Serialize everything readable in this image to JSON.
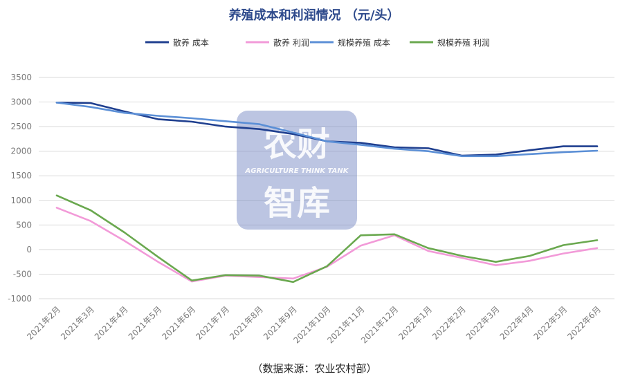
{
  "chart_data": {
    "type": "line",
    "title": "养殖成本和利润情况 （元/头）",
    "xlabel": "",
    "ylabel": "",
    "categories": [
      "2021年2月",
      "2021年3月",
      "2021年4月",
      "2021年5月",
      "2021年6月",
      "2021年7月",
      "2021年8月",
      "2021年9月",
      "2021年10月",
      "2021年11月",
      "2021年12月",
      "2022年1月",
      "2022年2月",
      "2022年3月",
      "2022年4月",
      "2022年5月",
      "2022年6月"
    ],
    "ylim": [
      -1000,
      3500
    ],
    "yticks": [
      -1000,
      -500,
      0,
      500,
      1000,
      1500,
      2000,
      2500,
      3000,
      3500
    ],
    "grid": true,
    "legend_position": "top",
    "series": [
      {
        "name": "散养  成本",
        "color": "#1f3f8f",
        "values": [
          2990,
          2980,
          2810,
          2650,
          2600,
          2500,
          2450,
          2350,
          2200,
          2170,
          2080,
          2060,
          1910,
          1930,
          2020,
          2100,
          2100
        ]
      },
      {
        "name": "散养  利润",
        "color": "#f29ad8",
        "values": [
          850,
          580,
          180,
          -250,
          -650,
          -530,
          -560,
          -590,
          -350,
          80,
          290,
          -30,
          -170,
          -320,
          -230,
          -80,
          30
        ]
      },
      {
        "name": "规模养殖  成本",
        "color": "#5b8fd6",
        "values": [
          2990,
          2900,
          2780,
          2720,
          2670,
          2610,
          2550,
          2380,
          2200,
          2130,
          2050,
          2000,
          1900,
          1900,
          1940,
          1980,
          2010
        ]
      },
      {
        "name": "规模养殖  利润",
        "color": "#6aa84f",
        "values": [
          1100,
          800,
          350,
          -150,
          -630,
          -520,
          -530,
          -660,
          -340,
          290,
          310,
          30,
          -130,
          -250,
          -130,
          90,
          190
        ]
      }
    ]
  },
  "watermark": {
    "line1": "农财",
    "line2": "AGRICULTURE THINK TANK",
    "line3": "智库"
  },
  "source": "（数据来源：农业农村部）"
}
